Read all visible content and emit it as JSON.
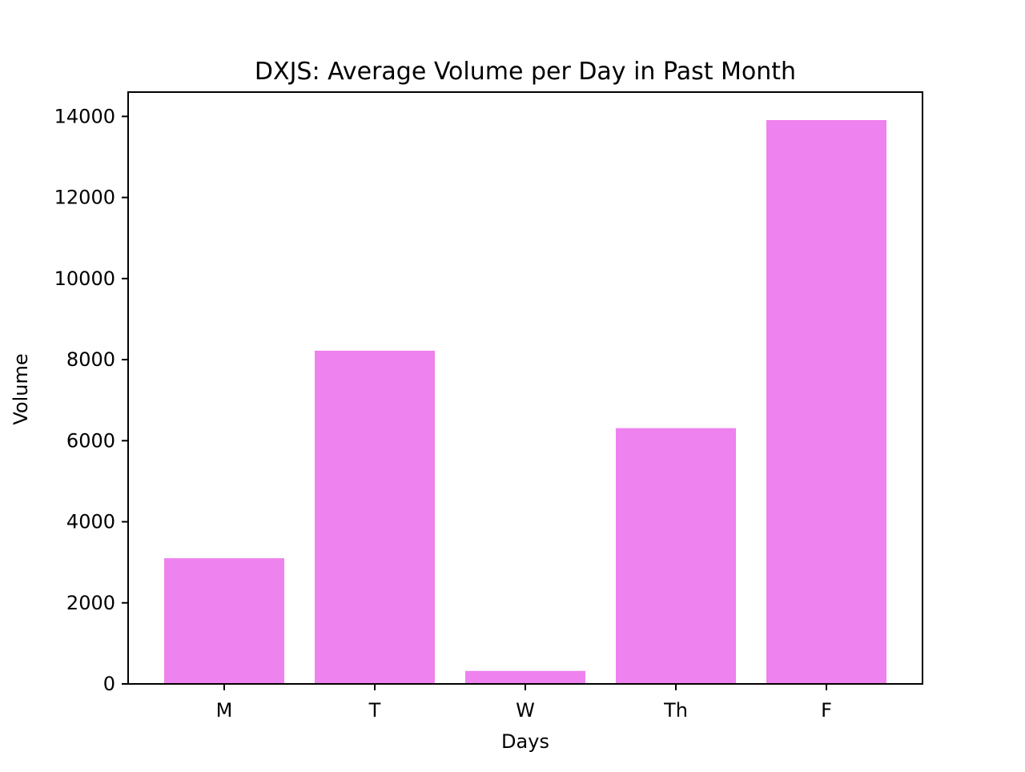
{
  "chart_data": {
    "type": "bar",
    "title": "DXJS: Average Volume per Day in Past Month",
    "xlabel": "Days",
    "ylabel": "Volume",
    "categories": [
      "M",
      "T",
      "W",
      "Th",
      "F"
    ],
    "values": [
      3100,
      8220,
      320,
      6310,
      13910
    ],
    "ylim": [
      0,
      14600
    ],
    "yticks": [
      0,
      2000,
      4000,
      6000,
      8000,
      10000,
      12000,
      14000
    ],
    "ytick_labels": [
      "0",
      "2000",
      "4000",
      "6000",
      "8000",
      "10000",
      "12000",
      "14000"
    ],
    "grid": false,
    "legend": "none",
    "colors": {
      "bar": "#ee82ee",
      "axes": "#000000",
      "background": "#ffffff"
    }
  }
}
